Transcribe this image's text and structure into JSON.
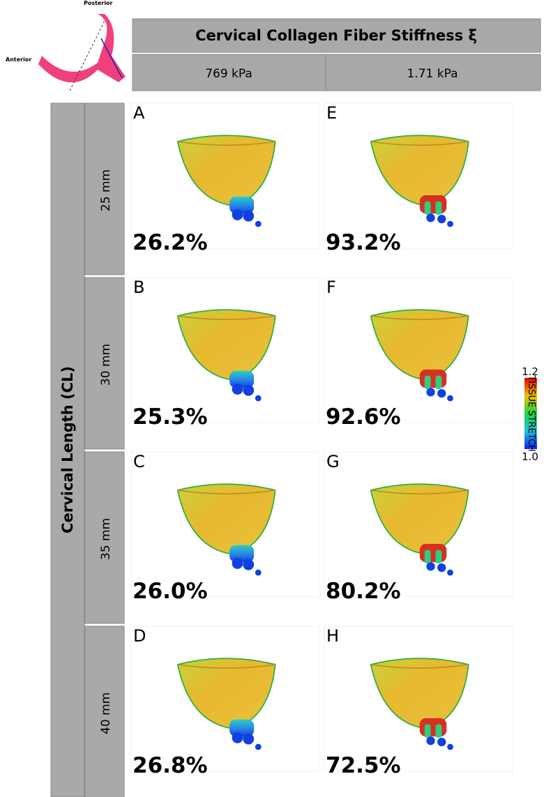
{
  "inset": {
    "posterior": "Posterior",
    "anterior": "Anterior"
  },
  "header": {
    "title": "Cervical Collagen Fiber Stiffness ξ",
    "columns": [
      "769 kPa",
      "1.71 kPa"
    ]
  },
  "side": {
    "title": "Cervical Length (CL)",
    "rows": [
      "25 mm",
      "30 mm",
      "35 mm",
      "40 mm"
    ]
  },
  "panels": [
    [
      {
        "letter": "A",
        "value": "26.2%"
      },
      {
        "letter": "B",
        "value": "25.3%"
      },
      {
        "letter": "C",
        "value": "26.0%"
      },
      {
        "letter": "D",
        "value": "26.8%"
      }
    ],
    [
      {
        "letter": "E",
        "value": "93.2%"
      },
      {
        "letter": "F",
        "value": "92.6%"
      },
      {
        "letter": "G",
        "value": "80.2%"
      },
      {
        "letter": "H",
        "value": "72.5%"
      }
    ]
  ],
  "colorbar": {
    "max": "1.2",
    "min": "1.0",
    "label": "TISSUE STRETCH"
  }
}
